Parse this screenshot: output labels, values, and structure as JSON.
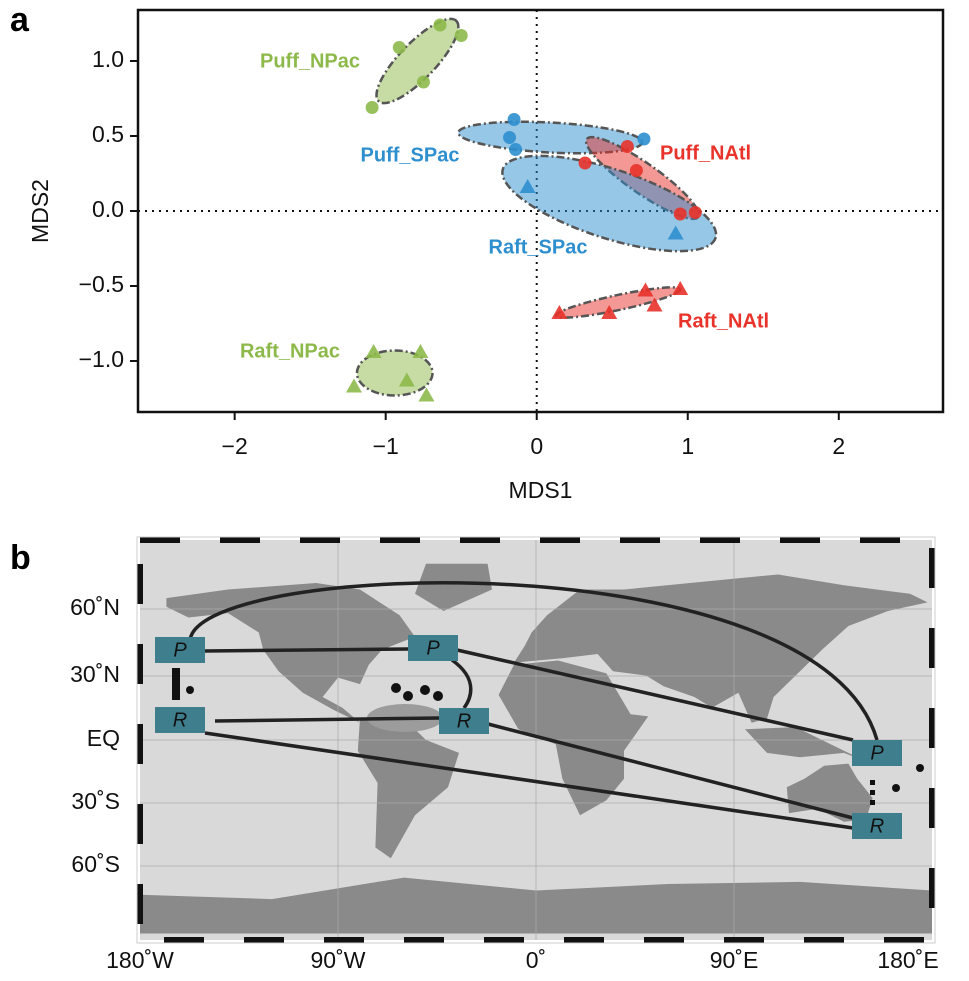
{
  "panel_labels": [
    "a",
    "b"
  ],
  "chart_data": {
    "type": "scatter",
    "x_label": "MDS1",
    "y_label": "MDS2",
    "xlim": [
      -2.64,
      2.69
    ],
    "ylim": [
      -1.34,
      1.34
    ],
    "xticks": [
      {
        "value": -2,
        "label": "−2"
      },
      {
        "value": -1,
        "label": "−1"
      },
      0,
      1,
      2
    ],
    "yticks": [
      {
        "value": -1,
        "label": "−1.0"
      },
      {
        "value": -0.5,
        "label": "−0.5"
      },
      {
        "value": 0,
        "label": "0.0"
      },
      0.5,
      {
        "value": 1,
        "label": "1.0"
      }
    ],
    "series": [
      {
        "name": "Puff_NPac",
        "color": "#8db94a",
        "marker": "circle",
        "x": [
          -0.64,
          -0.5,
          -0.91,
          -0.75,
          -1.09
        ],
        "y": [
          1.24,
          1.17,
          1.09,
          0.86,
          0.69
        ],
        "ellipse": {
          "center": [
            -0.79,
            1.0
          ],
          "radii": [
            0.37,
            0.12
          ],
          "angle": 46
        }
      },
      {
        "name": "Puff_SPac",
        "color": "#2e8fcf",
        "marker": "circle",
        "x": [
          -0.15,
          -0.18,
          -0.14,
          0.71
        ],
        "y": [
          0.61,
          0.49,
          0.41,
          0.48
        ],
        "ellipse": {
          "center": [
            0.09,
            0.49
          ],
          "radii": [
            0.61,
            0.1
          ],
          "angle": -3
        }
      },
      {
        "name": "Puff_NAtl",
        "color": "#e8322a",
        "marker": "circle",
        "x": [
          0.6,
          0.32,
          0.66,
          0.95,
          1.05
        ],
        "y": [
          0.43,
          0.32,
          0.27,
          -0.02,
          -0.01
        ],
        "ellipse": {
          "center": [
            0.7,
            0.22
          ],
          "radii": [
            0.45,
            0.1
          ],
          "angle": -35
        }
      },
      {
        "name": "Raft_SPac",
        "color": "#2e8fcf",
        "marker": "triangle",
        "x": [
          -0.06,
          0.92
        ],
        "y": [
          0.16,
          -0.15
        ],
        "ellipse": {
          "center": [
            0.48,
            0.05
          ],
          "radii": [
            0.74,
            0.23
          ],
          "angle": -18
        }
      },
      {
        "name": "Raft_NAtl",
        "color": "#e8322a",
        "marker": "triangle",
        "x": [
          0.15,
          0.48,
          0.72,
          0.95,
          0.78
        ],
        "y": [
          -0.68,
          -0.68,
          -0.53,
          -0.52,
          -0.63
        ],
        "ellipse": {
          "center": [
            0.54,
            -0.61
          ],
          "radii": [
            0.42,
            0.05
          ],
          "angle": 12
        }
      },
      {
        "name": "Raft_NPac",
        "color": "#8db94a",
        "marker": "triangle",
        "x": [
          -1.08,
          -0.77,
          -1.21,
          -0.86,
          -0.73
        ],
        "y": [
          -0.94,
          -0.94,
          -1.17,
          -1.13,
          -1.23
        ],
        "ellipse": {
          "center": [
            -0.94,
            -1.08
          ],
          "radii": [
            0.25,
            0.15
          ],
          "angle": 0
        }
      }
    ]
  },
  "map": {
    "x_labels": [
      "180˚W",
      "90˚W",
      "0˚",
      "90˚E",
      "180˚E"
    ],
    "y_labels": [
      "60˚N",
      "30˚N",
      "EQ",
      "30˚S",
      "60˚S"
    ],
    "boxes": [
      "P",
      "R",
      "P",
      "R",
      "P",
      "R"
    ]
  }
}
